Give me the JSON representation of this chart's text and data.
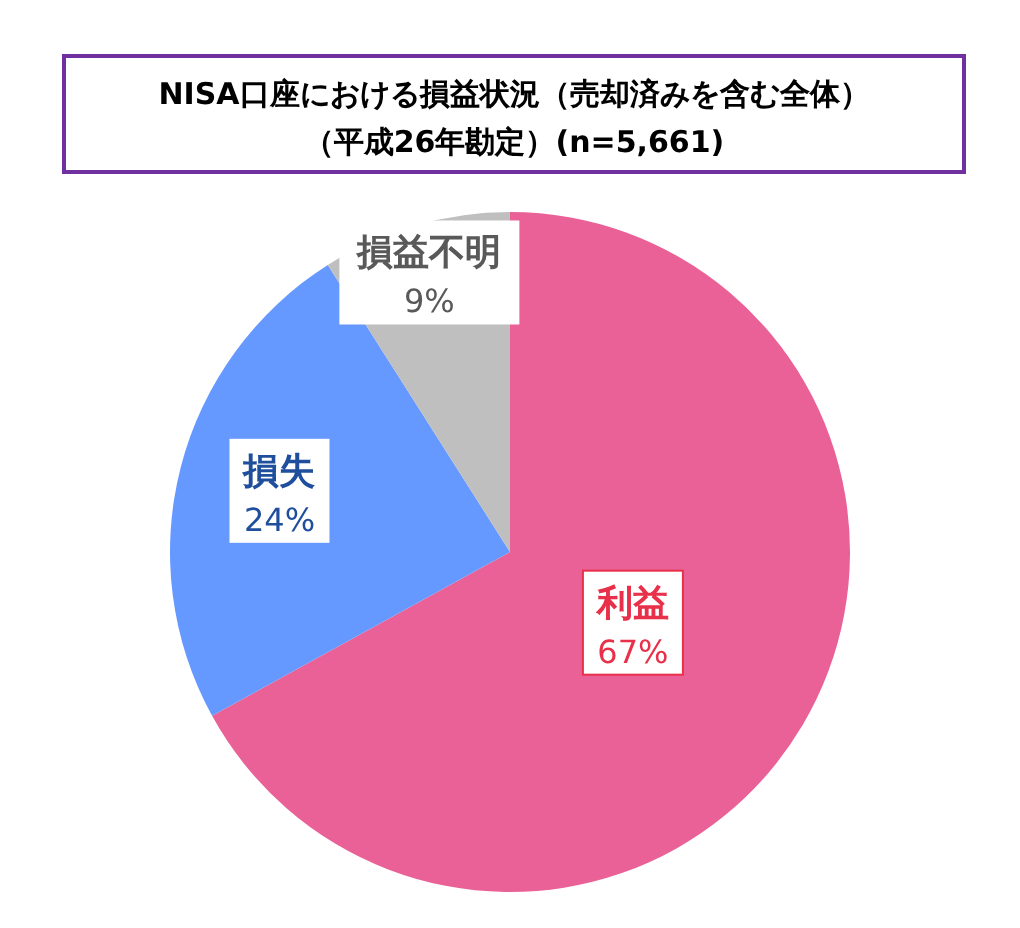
{
  "chart_data": {
    "type": "pie",
    "title": "NISA口座における損益状況（売却済みを含む全体）",
    "subtitle": "（平成26年勘定）(n=5,661)",
    "categories": [
      "利益",
      "損失",
      "損益不明"
    ],
    "values": [
      67,
      24,
      9
    ],
    "colors": [
      "#ea6198",
      "#6699ff",
      "#bfbfbf"
    ],
    "value_labels": [
      "67%",
      "24%",
      "9%"
    ]
  }
}
